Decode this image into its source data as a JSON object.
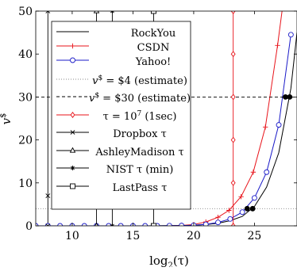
{
  "chart_data": {
    "type": "line",
    "xlabel_main": "log",
    "xlabel_sub": "2",
    "xlabel_arg": "(τ)",
    "ylabel_main": "v",
    "ylabel_sup": "$",
    "xlim": [
      7,
      28.5
    ],
    "ylim": [
      0,
      50
    ],
    "x_ticks": [
      10,
      15,
      20,
      25
    ],
    "y_ticks": [
      0,
      10,
      20,
      30,
      40,
      50
    ],
    "grid": false,
    "legend_placement": "upper-left",
    "series": [
      {
        "name": "RockYou",
        "color": "#000000",
        "marker": "none",
        "x": [
          7,
          12,
          16,
          18,
          20,
          21,
          22,
          23,
          24,
          25,
          26,
          27,
          28,
          28.5
        ],
        "y": [
          0,
          0,
          0,
          0.05,
          0.15,
          0.3,
          0.6,
          1.2,
          2.2,
          4.5,
          9,
          17,
          32,
          45
        ]
      },
      {
        "name": "CSDN",
        "color": "#e8131a",
        "marker": "plus",
        "x": [
          7,
          12,
          16,
          18,
          19,
          20,
          21,
          22,
          22.9,
          23.9,
          24.9,
          25.9,
          26.9,
          27.5
        ],
        "y": [
          0,
          0,
          0,
          0,
          0.1,
          0.3,
          0.9,
          2.0,
          3.6,
          6.8,
          12.5,
          23,
          42,
          55
        ]
      },
      {
        "name": "Yahoo!",
        "color": "#1a1ac8",
        "marker": "circle",
        "x": [
          7,
          8,
          9,
          10,
          11,
          12,
          13,
          14,
          15,
          16,
          17,
          18,
          19,
          20,
          21,
          22,
          23,
          24,
          25,
          26,
          27,
          28
        ],
        "y": [
          0,
          0,
          0,
          0,
          0,
          0,
          0,
          0,
          0,
          0,
          0,
          0.03,
          0.07,
          0.15,
          0.35,
          0.8,
          1.6,
          3.2,
          6.5,
          12.5,
          23.5,
          44.5
        ]
      },
      {
        "name": "v^$ = $4 (estimate)",
        "color": "#888888",
        "style": "dotted",
        "y_const": 4
      },
      {
        "name": "v^$ = $30 (estimate)",
        "color": "#000000",
        "style": "dashed",
        "y_const": 30
      },
      {
        "name": "τ = 10^7 (1sec)",
        "color": "#e8131a",
        "marker": "diamond",
        "x_const": 23.25
      },
      {
        "name": "Dropbox τ",
        "color": "#000000",
        "marker": "x",
        "x_const": 8
      },
      {
        "name": "AshleyMadison τ",
        "color": "#000000",
        "marker": "triangle",
        "x_const": 12
      },
      {
        "name": "NIST τ (min)",
        "color": "#000000",
        "marker": "star",
        "x_const": 13.3
      },
      {
        "name": "LastPass τ",
        "color": "#000000",
        "marker": "square",
        "x_const": 16.7
      }
    ],
    "intersections": [
      {
        "x": 24.4,
        "y": 4
      },
      {
        "x": 24.85,
        "y": 4
      },
      {
        "x": 27.55,
        "y": 30
      },
      {
        "x": 27.9,
        "y": 30
      }
    ]
  },
  "legend": {
    "rockyou": "RockYou",
    "csdn": "CSDN",
    "yahoo": "Yahoo!",
    "est4_a": "v",
    "est4_sup": "$",
    "est4_b": " = $4 (estimate)",
    "est30_a": "v",
    "est30_sup": "$",
    "est30_b": " = $30 (estimate)",
    "tau_a": "τ = 10",
    "tau_sup": "7",
    "tau_b": " (1sec)",
    "dropbox": "Dropbox τ",
    "ashley": "AshleyMadison τ",
    "nist": "NIST τ (min)",
    "lastpass": "LastPass τ"
  }
}
